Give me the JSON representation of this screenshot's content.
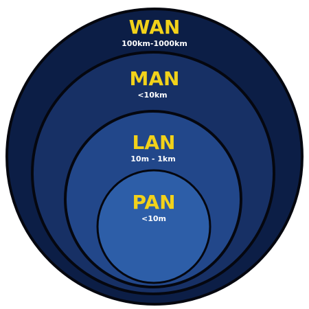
{
  "diagram": {
    "layers": [
      {
        "id": "wan",
        "name": "WAN",
        "range": "100km-1000km",
        "fill": "#0c1e46"
      },
      {
        "id": "man",
        "name": "MAN",
        "range": "<10km",
        "fill": "#173065"
      },
      {
        "id": "lan",
        "name": "LAN",
        "range": "10m - 1km",
        "fill": "#22478a"
      },
      {
        "id": "pan",
        "name": "PAN",
        "range": "<10m",
        "fill": "#2d5ea8"
      }
    ],
    "colors": {
      "outline": "#05070f",
      "name_text": "#f2d21a",
      "range_text": "#ffffff"
    }
  }
}
